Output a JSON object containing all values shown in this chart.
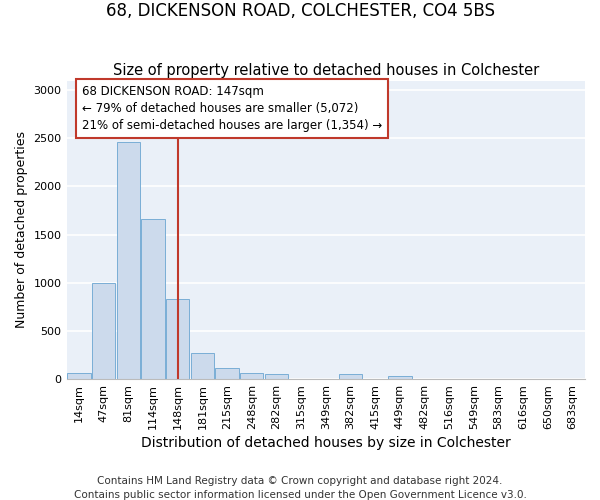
{
  "title1": "68, DICKENSON ROAD, COLCHESTER, CO4 5BS",
  "title2": "Size of property relative to detached houses in Colchester",
  "xlabel": "Distribution of detached houses by size in Colchester",
  "ylabel": "Number of detached properties",
  "categories": [
    "14sqm",
    "47sqm",
    "81sqm",
    "114sqm",
    "148sqm",
    "181sqm",
    "215sqm",
    "248sqm",
    "282sqm",
    "315sqm",
    "349sqm",
    "382sqm",
    "415sqm",
    "449sqm",
    "482sqm",
    "516sqm",
    "549sqm",
    "583sqm",
    "616sqm",
    "650sqm",
    "683sqm"
  ],
  "values": [
    60,
    1000,
    2460,
    1660,
    830,
    270,
    120,
    60,
    50,
    0,
    0,
    50,
    0,
    30,
    0,
    0,
    0,
    0,
    0,
    0,
    0
  ],
  "bar_color": "#ccdaec",
  "bar_edge_color": "#7aaed6",
  "background_color": "#eaf0f8",
  "grid_color": "#ffffff",
  "vline_index": 4,
  "vline_color": "#c0392b",
  "annotation_text": "68 DICKENSON ROAD: 147sqm\n← 79% of detached houses are smaller (5,072)\n21% of semi-detached houses are larger (1,354) →",
  "annotation_box_facecolor": "#ffffff",
  "annotation_box_edgecolor": "#c0392b",
  "ylim": [
    0,
    3100
  ],
  "yticks": [
    0,
    500,
    1000,
    1500,
    2000,
    2500,
    3000
  ],
  "footnote": "Contains HM Land Registry data © Crown copyright and database right 2024.\nContains public sector information licensed under the Open Government Licence v3.0.",
  "title1_fontsize": 12,
  "title2_fontsize": 10.5,
  "xlabel_fontsize": 10,
  "ylabel_fontsize": 9,
  "tick_fontsize": 8,
  "annotation_fontsize": 8.5,
  "footnote_fontsize": 7.5
}
